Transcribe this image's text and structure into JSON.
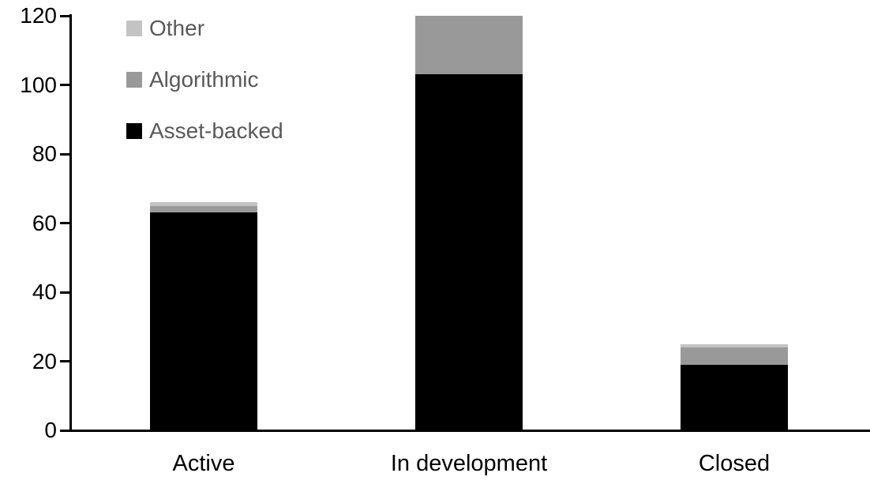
{
  "chart_data": {
    "type": "bar",
    "stacked": true,
    "title": "",
    "xlabel": "",
    "ylabel": "",
    "categories": [
      "Active",
      "In development",
      "Closed"
    ],
    "series": [
      {
        "name": "Asset-backed",
        "color": "#000000",
        "values": [
          63,
          103,
          19
        ]
      },
      {
        "name": "Algorithmic",
        "color": "#999999",
        "values": [
          2,
          17,
          5
        ]
      },
      {
        "name": "Other",
        "color": "#c3c3c3",
        "values": [
          1,
          0,
          1
        ]
      }
    ],
    "totals": [
      66,
      120,
      25
    ],
    "ylim": [
      0,
      120
    ],
    "yticks": [
      0,
      20,
      40,
      60,
      80,
      100,
      120
    ],
    "grid": false,
    "legend_position": "top-left",
    "legend_order": [
      "Other",
      "Algorithmic",
      "Asset-backed"
    ]
  },
  "colors": {
    "background": "#ffffff",
    "axis": "#000000",
    "tick_label_text": "#000000",
    "category_label_text": "#000000",
    "legend_text": "#595959"
  }
}
